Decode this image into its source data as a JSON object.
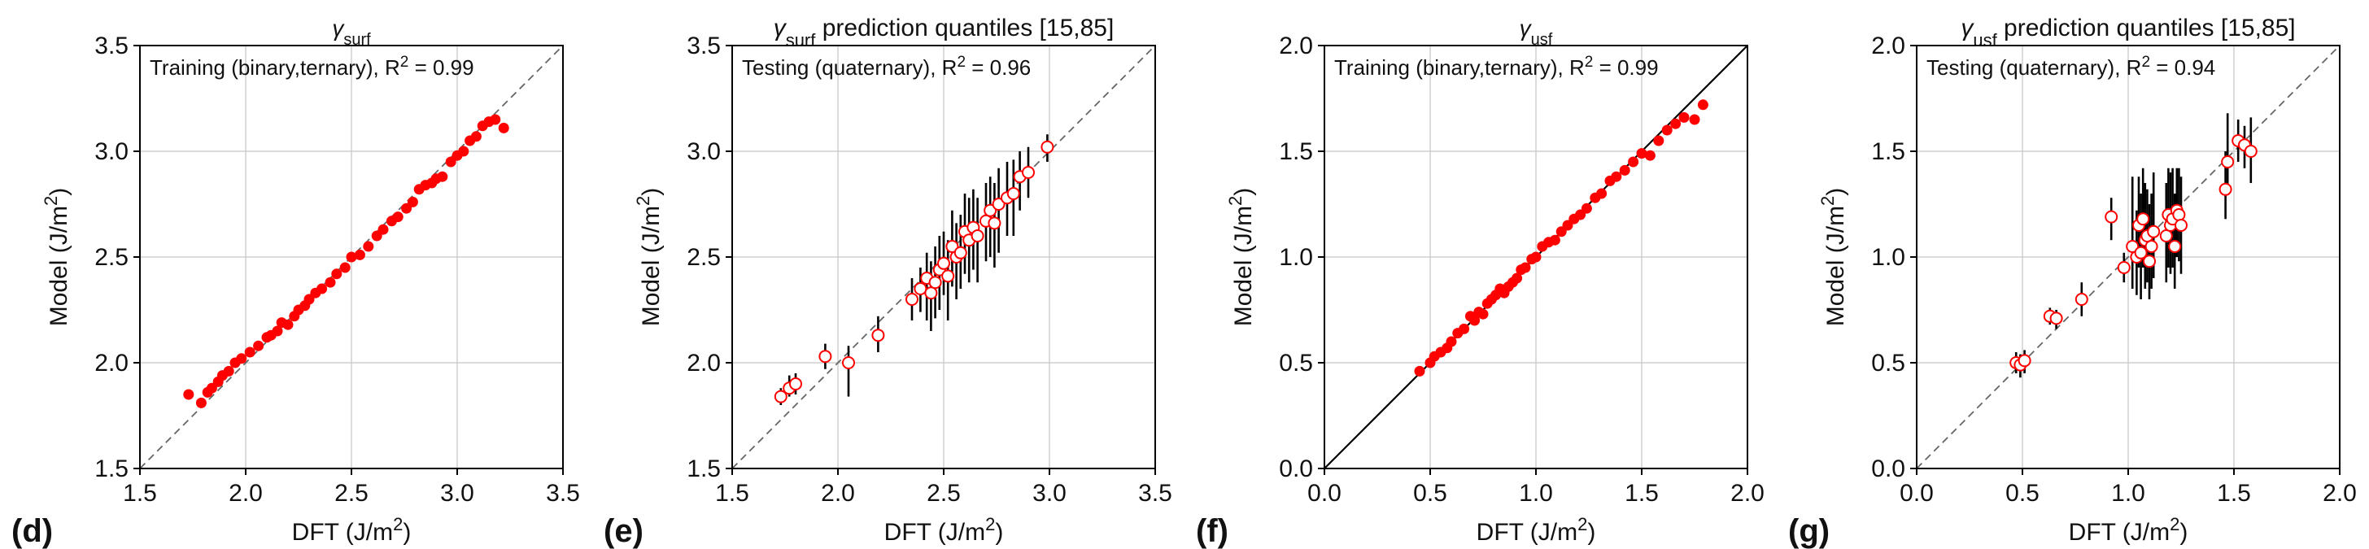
{
  "chart_data": [
    {
      "type": "scatter",
      "panel_label": "(d)",
      "title": "γsurf",
      "title_parts": {
        "symbol": "γ",
        "subscript": "surf",
        "suffix": ""
      },
      "annotation": "Training (binary,ternary), R² = 0.99",
      "annotation_parts": {
        "text": "Training (binary,ternary), R",
        "sup": "2",
        "rest": " = 0.99"
      },
      "xlabel": "DFT (J/m²)",
      "ylabel": "Model (J/m²)",
      "xlim": [
        1.5,
        3.5
      ],
      "ylim": [
        1.5,
        3.5
      ],
      "xticks": [
        "1.5",
        "2.0",
        "2.5",
        "3.0",
        "3.5"
      ],
      "yticks": [
        "1.5",
        "2.0",
        "2.5",
        "3.0",
        "3.5"
      ],
      "grid": true,
      "reference_line": "dashed",
      "marker": "filled",
      "color": "#ff0000",
      "series": [
        {
          "x": [
            1.73,
            1.79,
            1.82,
            1.84,
            1.87,
            1.89,
            1.92,
            1.95,
            1.98,
            2.02,
            2.06,
            2.1,
            2.12,
            2.15,
            2.17,
            2.2,
            2.23,
            2.25,
            2.28,
            2.3,
            2.33,
            2.36,
            2.4,
            2.43,
            2.47,
            2.5,
            2.54,
            2.58,
            2.62,
            2.65,
            2.69,
            2.72,
            2.76,
            2.79,
            2.82,
            2.85,
            2.88,
            2.9,
            2.93,
            2.97,
            3.0,
            3.03,
            3.06,
            3.09,
            3.12,
            3.15,
            3.18,
            3.22
          ],
          "y": [
            1.85,
            1.81,
            1.86,
            1.88,
            1.91,
            1.94,
            1.96,
            2.0,
            2.02,
            2.05,
            2.08,
            2.12,
            2.13,
            2.15,
            2.19,
            2.18,
            2.22,
            2.25,
            2.27,
            2.3,
            2.33,
            2.35,
            2.38,
            2.42,
            2.45,
            2.5,
            2.51,
            2.55,
            2.6,
            2.63,
            2.67,
            2.69,
            2.73,
            2.76,
            2.82,
            2.84,
            2.85,
            2.87,
            2.88,
            2.95,
            2.98,
            3.0,
            3.05,
            3.07,
            3.12,
            3.14,
            3.15,
            3.11
          ]
        }
      ]
    },
    {
      "type": "scatter",
      "panel_label": "(e)",
      "title": "γsurf prediction quantiles [15,85]",
      "title_parts": {
        "symbol": "γ",
        "subscript": "surf",
        "suffix": " prediction quantiles [15,85]"
      },
      "annotation": "Testing (quaternary), R² = 0.96",
      "annotation_parts": {
        "text": "Testing (quaternary), R",
        "sup": "2",
        "rest": " = 0.96"
      },
      "xlabel": "DFT (J/m²)",
      "ylabel": "Model (J/m²)",
      "xlim": [
        1.5,
        3.5
      ],
      "ylim": [
        1.5,
        3.5
      ],
      "xticks": [
        "1.5",
        "2.0",
        "2.5",
        "3.0",
        "3.5"
      ],
      "yticks": [
        "1.5",
        "2.0",
        "2.5",
        "3.0",
        "3.5"
      ],
      "grid": true,
      "reference_line": "dashed",
      "marker": "open",
      "color": "#ff0000",
      "series": [
        {
          "x": [
            1.73,
            1.77,
            1.8,
            1.94,
            2.05,
            2.19,
            2.35,
            2.39,
            2.42,
            2.44,
            2.46,
            2.48,
            2.5,
            2.52,
            2.54,
            2.56,
            2.58,
            2.6,
            2.62,
            2.64,
            2.66,
            2.7,
            2.72,
            2.74,
            2.76,
            2.8,
            2.83,
            2.86,
            2.9,
            2.99
          ],
          "y": [
            1.84,
            1.88,
            1.9,
            2.03,
            2.0,
            2.13,
            2.3,
            2.35,
            2.4,
            2.33,
            2.38,
            2.44,
            2.47,
            2.41,
            2.55,
            2.5,
            2.52,
            2.62,
            2.58,
            2.64,
            2.6,
            2.67,
            2.72,
            2.66,
            2.75,
            2.78,
            2.8,
            2.88,
            2.9,
            3.02
          ],
          "y_low": [
            1.8,
            1.84,
            1.85,
            1.97,
            1.84,
            2.05,
            2.2,
            2.24,
            2.2,
            2.15,
            2.21,
            2.25,
            2.32,
            2.2,
            2.36,
            2.3,
            2.35,
            2.42,
            2.38,
            2.44,
            2.38,
            2.48,
            2.5,
            2.45,
            2.52,
            2.6,
            2.6,
            2.72,
            2.78,
            2.95
          ],
          "y_high": [
            1.88,
            1.94,
            1.95,
            2.09,
            2.08,
            2.22,
            2.4,
            2.45,
            2.52,
            2.48,
            2.55,
            2.6,
            2.62,
            2.58,
            2.72,
            2.66,
            2.7,
            2.8,
            2.78,
            2.82,
            2.78,
            2.85,
            2.88,
            2.85,
            2.92,
            2.95,
            2.96,
            3.0,
            3.02,
            3.08
          ]
        }
      ]
    },
    {
      "type": "scatter",
      "panel_label": "(f)",
      "title": "γusf",
      "title_parts": {
        "symbol": "γ",
        "subscript": "usf",
        "suffix": ""
      },
      "annotation": "Training (binary,ternary), R² = 0.99",
      "annotation_parts": {
        "text": "Training (binary,ternary), R",
        "sup": "2",
        "rest": " = 0.99"
      },
      "xlabel": "DFT (J/m²)",
      "ylabel": "Model (J/m²)",
      "xlim": [
        0.0,
        2.0
      ],
      "ylim": [
        0.0,
        2.0
      ],
      "xticks": [
        "0.0",
        "0.5",
        "1.0",
        "1.5",
        "2.0"
      ],
      "yticks": [
        "0.0",
        "0.5",
        "1.0",
        "1.5",
        "2.0"
      ],
      "grid": true,
      "reference_line": "solid",
      "marker": "filled",
      "color": "#ff0000",
      "series": [
        {
          "x": [
            0.45,
            0.5,
            0.52,
            0.55,
            0.58,
            0.6,
            0.63,
            0.66,
            0.69,
            0.71,
            0.73,
            0.75,
            0.77,
            0.79,
            0.81,
            0.83,
            0.85,
            0.87,
            0.89,
            0.91,
            0.93,
            0.95,
            0.98,
            1.0,
            1.03,
            1.06,
            1.09,
            1.12,
            1.15,
            1.18,
            1.21,
            1.24,
            1.28,
            1.31,
            1.35,
            1.38,
            1.42,
            1.46,
            1.5,
            1.54,
            1.58,
            1.62,
            1.66,
            1.7,
            1.75,
            1.79
          ],
          "y": [
            0.46,
            0.5,
            0.53,
            0.55,
            0.57,
            0.6,
            0.64,
            0.66,
            0.72,
            0.7,
            0.74,
            0.73,
            0.78,
            0.8,
            0.82,
            0.85,
            0.83,
            0.86,
            0.88,
            0.9,
            0.94,
            0.95,
            0.99,
            1.0,
            1.05,
            1.07,
            1.08,
            1.12,
            1.15,
            1.18,
            1.2,
            1.23,
            1.28,
            1.3,
            1.36,
            1.38,
            1.41,
            1.45,
            1.49,
            1.48,
            1.55,
            1.6,
            1.63,
            1.66,
            1.65,
            1.72
          ]
        }
      ]
    },
    {
      "type": "scatter",
      "panel_label": "(g)",
      "title": "γusf prediction quantiles [15,85]",
      "title_parts": {
        "symbol": "γ",
        "subscript": "usf",
        "suffix": " prediction quantiles [15,85]"
      },
      "annotation": "Testing (quaternary), R² = 0.94",
      "annotation_parts": {
        "text": "Testing (quaternary), R",
        "sup": "2",
        "rest": " = 0.94"
      },
      "xlabel": "DFT (J/m²)",
      "ylabel": "Model (J/m²)",
      "xlim": [
        0.0,
        2.0
      ],
      "ylim": [
        0.0,
        2.0
      ],
      "xticks": [
        "0.0",
        "0.5",
        "1.0",
        "1.5",
        "2.0"
      ],
      "yticks": [
        "0.0",
        "0.5",
        "1.0",
        "1.5",
        "2.0"
      ],
      "grid": true,
      "reference_line": "dashed",
      "marker": "open",
      "color": "#ff0000",
      "series": [
        {
          "x": [
            0.47,
            0.49,
            0.51,
            0.63,
            0.66,
            0.78,
            0.92,
            0.98,
            1.02,
            1.04,
            1.05,
            1.06,
            1.07,
            1.08,
            1.09,
            1.1,
            1.11,
            1.12,
            1.18,
            1.19,
            1.2,
            1.21,
            1.22,
            1.23,
            1.24,
            1.25,
            1.46,
            1.47,
            1.52,
            1.55,
            1.58
          ],
          "y": [
            0.5,
            0.49,
            0.51,
            0.72,
            0.71,
            0.8,
            1.19,
            0.95,
            1.05,
            1.0,
            1.15,
            1.02,
            1.18,
            1.08,
            1.1,
            0.98,
            1.05,
            1.12,
            1.1,
            1.2,
            1.15,
            1.18,
            1.05,
            1.22,
            1.2,
            1.15,
            1.32,
            1.45,
            1.55,
            1.53,
            1.5
          ],
          "y_low": [
            0.45,
            0.43,
            0.45,
            0.68,
            0.66,
            0.72,
            1.08,
            0.88,
            0.85,
            0.82,
            0.95,
            0.8,
            0.95,
            0.85,
            0.88,
            0.8,
            0.85,
            0.9,
            0.88,
            0.95,
            0.92,
            0.95,
            0.85,
            1.0,
            0.98,
            0.92,
            1.18,
            1.32,
            1.45,
            1.42,
            1.35
          ],
          "y_high": [
            0.55,
            0.54,
            0.56,
            0.76,
            0.75,
            0.88,
            1.28,
            1.02,
            1.38,
            1.22,
            1.38,
            1.3,
            1.42,
            1.35,
            1.32,
            1.25,
            1.3,
            1.4,
            1.35,
            1.42,
            1.4,
            1.42,
            1.3,
            1.42,
            1.42,
            1.38,
            1.5,
            1.68,
            1.65,
            1.62,
            1.66
          ]
        }
      ]
    }
  ]
}
